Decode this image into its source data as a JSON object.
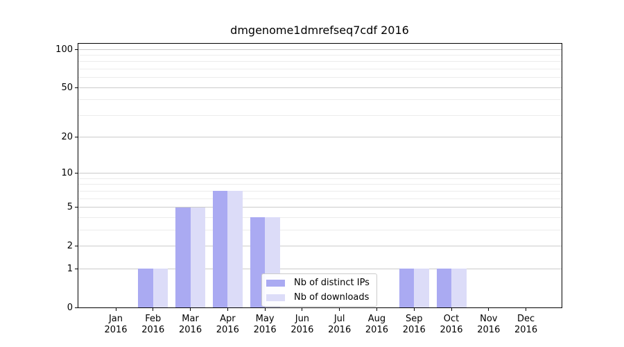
{
  "figure": {
    "title": "dmgenome1dmrefseq7cdf 2016"
  },
  "chart_data": {
    "type": "bar",
    "title": "dmgenome1dmrefseq7cdf 2016",
    "scale": "log1p",
    "grid": true,
    "ylim": [
      0,
      110
    ],
    "y_major_ticks": [
      0,
      1,
      2,
      5,
      10,
      20,
      50,
      100
    ],
    "y_minor_gridlines": [
      3,
      4,
      6,
      7,
      8,
      9,
      30,
      40,
      60,
      70,
      80,
      90
    ],
    "categories": [
      "Jan",
      "Feb",
      "Mar",
      "Apr",
      "May",
      "Jun",
      "Jul",
      "Aug",
      "Sep",
      "Oct",
      "Nov",
      "Dec"
    ],
    "category_year": "2016",
    "series": [
      {
        "name": "Nb of distinct IPs",
        "key": "distinct-ips",
        "color": "#aaaaf2",
        "values": [
          0,
          1,
          5,
          7,
          4,
          0,
          0,
          0,
          1,
          1,
          0,
          0
        ]
      },
      {
        "name": "Nb of downloads",
        "key": "downloads",
        "color": "#dcdcf8",
        "values": [
          0,
          1,
          5,
          7,
          4,
          0,
          0,
          0,
          1,
          1,
          0,
          0
        ]
      }
    ],
    "legend_position": "lower center"
  },
  "colors": {
    "background": "#ffffff",
    "axis": "#000000",
    "grid_major": "#cbcbcb",
    "grid_minor": "#ececec",
    "legend_border": "#cbcbcb",
    "text": "#000000"
  }
}
